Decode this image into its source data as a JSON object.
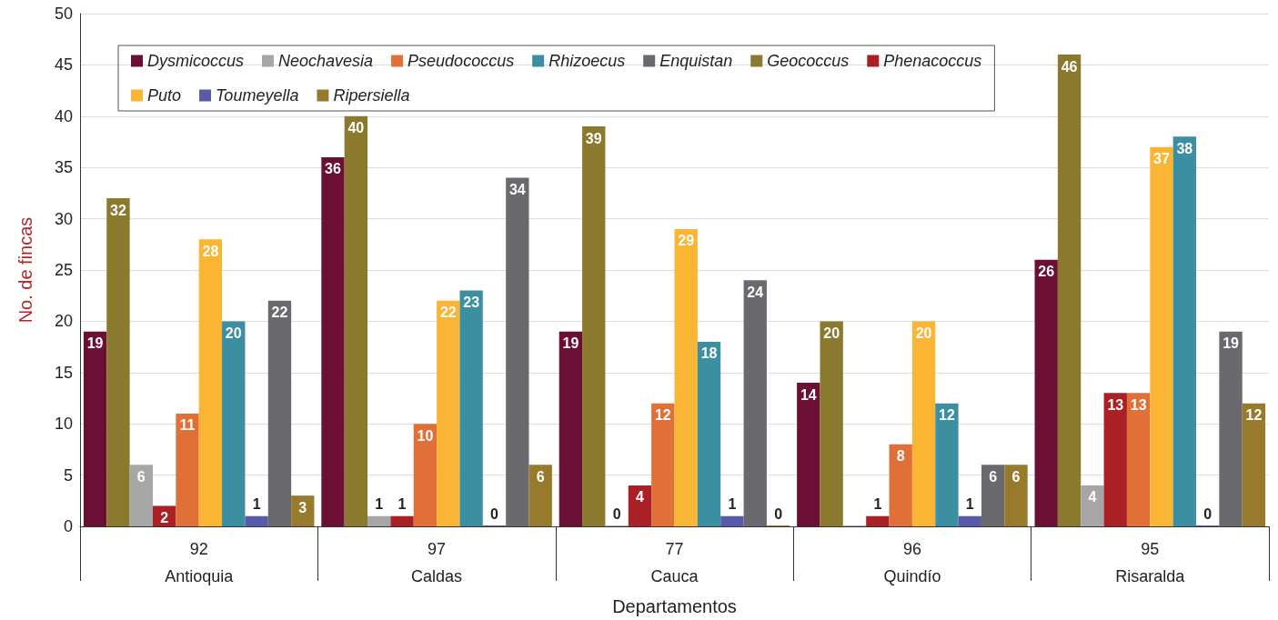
{
  "chart_data": {
    "type": "bar",
    "xlabel": "Departamentos",
    "ylabel": "No. de fincas",
    "categories": [
      "92\nAntioquia",
      "97\nCaldas",
      "77\nCauca",
      "96\nQuindío",
      "95\nRisaralda"
    ],
    "series": [
      {
        "name": "Dysmicoccus",
        "color": "#6b0f34",
        "values": [
          19,
          36,
          19,
          14,
          26
        ]
      },
      {
        "name": "Geococcus",
        "color": "#8b7a2e",
        "values": [
          32,
          40,
          39,
          20,
          46
        ]
      },
      {
        "name": "Neochavesia",
        "color": "#a6a6a6",
        "values": [
          6,
          1,
          0,
          0,
          4
        ],
        "value_labels": [
          "6",
          "1",
          "0",
          null,
          "4"
        ]
      },
      {
        "name": "Phenacoccus",
        "color": "#ab1f26",
        "values": [
          2,
          1,
          4,
          1,
          13
        ]
      },
      {
        "name": "Pseudococcus",
        "color": "#e07038",
        "values": [
          11,
          10,
          12,
          8,
          13
        ]
      },
      {
        "name": "Puto",
        "color": "#fbb535",
        "values": [
          28,
          22,
          29,
          20,
          37
        ]
      },
      {
        "name": "Rhizoecus",
        "color": "#3c8fa0",
        "values": [
          20,
          23,
          18,
          12,
          38
        ]
      },
      {
        "name": "Toumeyella",
        "color": "#5a5aaa",
        "values": [
          1,
          0,
          1,
          1,
          0
        ],
        "value_labels": [
          "1",
          "0",
          "1",
          "1",
          "0"
        ]
      },
      {
        "name": "Enquistan",
        "color": "#6a6a6e",
        "values": [
          22,
          34,
          24,
          6,
          19
        ]
      },
      {
        "name": "Ripersiella",
        "color": "#977a2c",
        "values": [
          3,
          6,
          0,
          6,
          12
        ],
        "value_labels": [
          "3",
          "6",
          "0",
          "6",
          "12"
        ]
      }
    ],
    "ylim": [
      0,
      50
    ],
    "yticks": [
      0,
      5,
      10,
      15,
      20,
      25,
      30,
      35,
      40,
      45,
      50
    ],
    "grid": "y",
    "legend": "top left",
    "data_labels": true
  }
}
